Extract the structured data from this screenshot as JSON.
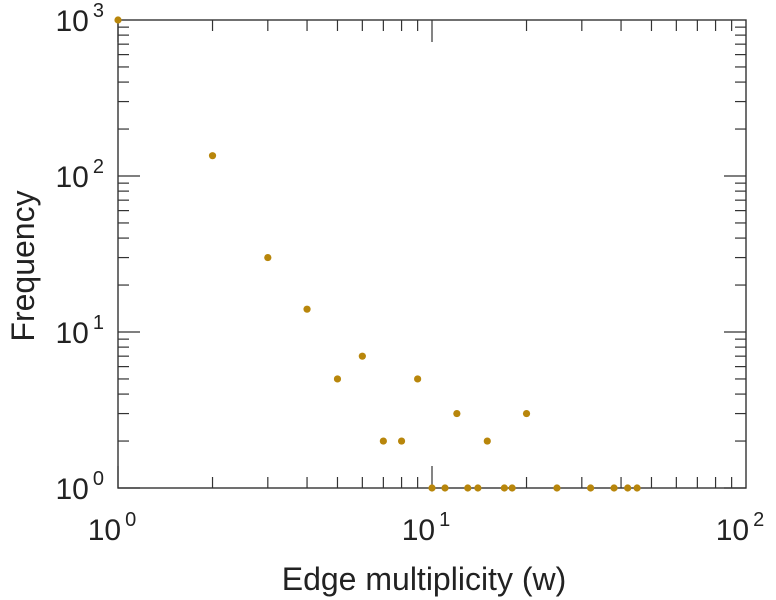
{
  "chart_data": {
    "type": "scatter",
    "xlabel": "Edge multiplicity (w)",
    "ylabel": "Frequency",
    "x_scale": "log",
    "y_scale": "log",
    "xlim": [
      1,
      100
    ],
    "ylim": [
      1,
      1000
    ],
    "x_ticks": [
      {
        "base": "10",
        "exp": "0"
      },
      {
        "base": "10",
        "exp": "1"
      },
      {
        "base": "10",
        "exp": "2"
      }
    ],
    "y_ticks": [
      {
        "base": "10",
        "exp": "0"
      },
      {
        "base": "10",
        "exp": "1"
      },
      {
        "base": "10",
        "exp": "2"
      },
      {
        "base": "10",
        "exp": "3"
      }
    ],
    "grid": false,
    "marker_color": "#b8860b",
    "points": [
      {
        "x": 1,
        "y": 1000
      },
      {
        "x": 2,
        "y": 135
      },
      {
        "x": 3,
        "y": 30
      },
      {
        "x": 4,
        "y": 14
      },
      {
        "x": 5,
        "y": 5
      },
      {
        "x": 6,
        "y": 7
      },
      {
        "x": 7,
        "y": 2
      },
      {
        "x": 8,
        "y": 2
      },
      {
        "x": 9,
        "y": 5
      },
      {
        "x": 10,
        "y": 1
      },
      {
        "x": 11,
        "y": 1
      },
      {
        "x": 12,
        "y": 3
      },
      {
        "x": 13,
        "y": 1
      },
      {
        "x": 14,
        "y": 1
      },
      {
        "x": 15,
        "y": 2
      },
      {
        "x": 17,
        "y": 1
      },
      {
        "x": 18,
        "y": 1
      },
      {
        "x": 20,
        "y": 3
      },
      {
        "x": 25,
        "y": 1
      },
      {
        "x": 32,
        "y": 1
      },
      {
        "x": 38,
        "y": 1
      },
      {
        "x": 42,
        "y": 1
      },
      {
        "x": 45,
        "y": 1
      }
    ]
  }
}
